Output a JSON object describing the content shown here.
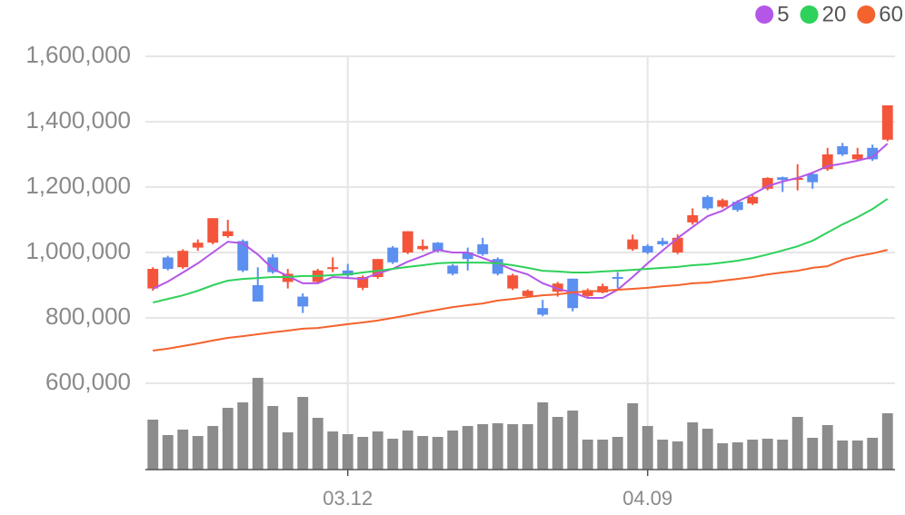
{
  "chart_data": {
    "type": "candlestick",
    "categories": [
      null,
      null,
      null,
      null,
      null,
      null,
      null,
      null,
      null,
      null,
      null,
      null,
      null,
      "03.12",
      null,
      null,
      null,
      null,
      null,
      null,
      null,
      null,
      null,
      null,
      null,
      null,
      null,
      null,
      null,
      null,
      null,
      null,
      null,
      "04.09",
      null,
      null,
      null,
      null,
      null,
      null,
      null,
      null,
      null,
      null,
      null,
      null,
      null,
      null,
      null,
      null
    ],
    "open": [
      890000,
      985000,
      955000,
      1015000,
      1030000,
      1050000,
      1035000,
      900000,
      985000,
      910000,
      865000,
      910000,
      950000,
      945000,
      892000,
      925000,
      1015000,
      1000000,
      1010000,
      1030000,
      960000,
      1000000,
      1025000,
      980000,
      890000,
      867000,
      830000,
      880000,
      920000,
      867000,
      878000,
      925000,
      1010000,
      1020000,
      1035000,
      1000000,
      1092000,
      1170000,
      1140000,
      1155000,
      1150000,
      1195000,
      1230000,
      1222000,
      1240000,
      1255000,
      1325000,
      1285000,
      1320000,
      1345000
    ],
    "high": [
      955000,
      990000,
      1010000,
      1040000,
      1105000,
      1100000,
      1040000,
      955000,
      995000,
      950000,
      875000,
      950000,
      985000,
      965000,
      930000,
      980000,
      1020000,
      1065000,
      1040000,
      1032000,
      965000,
      1015000,
      1045000,
      985000,
      935000,
      887000,
      855000,
      910000,
      920000,
      890000,
      905000,
      940000,
      1055000,
      1025000,
      1045000,
      1055000,
      1135000,
      1175000,
      1165000,
      1160000,
      1180000,
      1230000,
      1232000,
      1270000,
      1245000,
      1320000,
      1335000,
      1320000,
      1330000,
      1450000
    ],
    "low": [
      883000,
      945000,
      950000,
      1005000,
      1025000,
      1045000,
      940000,
      850000,
      935000,
      890000,
      815000,
      905000,
      940000,
      925000,
      885000,
      920000,
      965000,
      995000,
      1005000,
      1000000,
      930000,
      945000,
      990000,
      930000,
      885000,
      865000,
      805000,
      865000,
      820000,
      863000,
      875000,
      890000,
      1005000,
      995000,
      1020000,
      995000,
      1085000,
      1130000,
      1135000,
      1125000,
      1145000,
      1190000,
      1185000,
      1190000,
      1195000,
      1250000,
      1295000,
      1280000,
      1280000,
      1340000
    ],
    "close": [
      950000,
      950000,
      1005000,
      1030000,
      1105000,
      1065000,
      945000,
      850000,
      940000,
      935000,
      835000,
      945000,
      955000,
      930000,
      925000,
      980000,
      970000,
      1065000,
      1020000,
      1005000,
      935000,
      980000,
      995000,
      935000,
      930000,
      883000,
      810000,
      905000,
      830000,
      885000,
      897000,
      920000,
      1040000,
      1000000,
      1025000,
      1045000,
      1114000,
      1135000,
      1160000,
      1130000,
      1170000,
      1228000,
      1222000,
      1228000,
      1215000,
      1300000,
      1300000,
      1300000,
      1285000,
      1450000
    ],
    "up_color": "#f4553a",
    "down_color": "#5b8ff0",
    "volume": [
      55,
      38,
      44,
      37,
      48,
      68,
      74,
      101,
      70,
      41,
      80,
      57,
      42,
      39,
      36,
      42,
      34,
      43,
      37,
      36,
      43,
      48,
      50,
      51,
      50,
      50,
      74,
      58,
      65,
      33,
      33,
      36,
      73,
      48,
      33,
      31,
      52,
      45,
      29,
      30,
      33,
      34,
      33,
      58,
      35,
      49,
      32,
      32,
      35,
      62
    ],
    "volume_color": "#8c8c8c",
    "volume_ylim": [
      0,
      110
    ],
    "series": [
      {
        "name": "5",
        "color": "#b456e8",
        "values": [
          889000,
          911000,
          939000,
          967000,
          1000000,
          1033000,
          1028000,
          994000,
          950000,
          928000,
          906000,
          906000,
          925000,
          922000,
          919000,
          936000,
          950000,
          972000,
          989000,
          1008000,
          1000000,
          1000000,
          983000,
          967000,
          947000,
          933000,
          906000,
          889000,
          878000,
          861000,
          861000,
          886000,
          925000,
          967000,
          1006000,
          1044000,
          1078000,
          1111000,
          1128000,
          1156000,
          1178000,
          1203000,
          1217000,
          1228000,
          1244000,
          1264000,
          1272000,
          1281000,
          1292000,
          1333000
        ]
      },
      {
        "name": "20",
        "color": "#2ed15a",
        "values": [
          847000,
          858000,
          869000,
          883000,
          900000,
          914000,
          919000,
          922000,
          925000,
          925000,
          928000,
          928000,
          931000,
          933000,
          939000,
          944000,
          950000,
          956000,
          961000,
          967000,
          969000,
          969000,
          969000,
          967000,
          961000,
          953000,
          944000,
          942000,
          939000,
          939000,
          942000,
          944000,
          947000,
          950000,
          953000,
          956000,
          961000,
          964000,
          969000,
          975000,
          983000,
          994000,
          1006000,
          1019000,
          1036000,
          1061000,
          1086000,
          1108000,
          1133000,
          1164000
        ]
      },
      {
        "name": "60",
        "color": "#f4622d",
        "values": [
          700000,
          706000,
          714000,
          722000,
          731000,
          739000,
          744000,
          750000,
          756000,
          761000,
          767000,
          769000,
          775000,
          781000,
          786000,
          792000,
          800000,
          808000,
          817000,
          825000,
          833000,
          839000,
          844000,
          853000,
          858000,
          864000,
          869000,
          872000,
          878000,
          881000,
          883000,
          886000,
          889000,
          892000,
          897000,
          900000,
          906000,
          908000,
          914000,
          919000,
          925000,
          933000,
          939000,
          944000,
          953000,
          958000,
          978000,
          989000,
          997000,
          1008000
        ]
      }
    ],
    "ylim": [
      600000,
      1600000
    ],
    "yticks": [
      {
        "value": 600000,
        "label": "600,000"
      },
      {
        "value": 800000,
        "label": "800,000"
      },
      {
        "value": 1000000,
        "label": "1,000,000"
      },
      {
        "value": 1200000,
        "label": "1,200,000"
      },
      {
        "value": 1400000,
        "label": "1,400,000"
      },
      {
        "value": 1600000,
        "label": "1,600,000"
      }
    ],
    "grid": true,
    "legend": "top-right"
  }
}
